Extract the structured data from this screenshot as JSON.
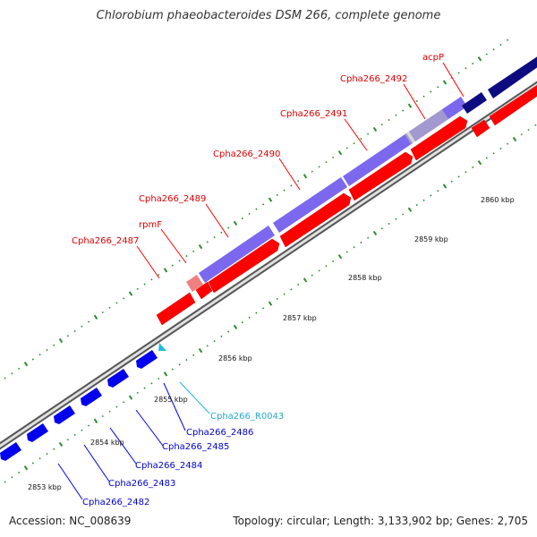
{
  "title": "Chlorobium phaeobacteroides DSM 266, complete genome",
  "footer": {
    "accession": "Accession: NC_008639",
    "summary": "Topology: circular; Length: 3,133,902 bp; Genes: 2,705"
  },
  "colors": {
    "forward_gene": "#ff0000",
    "reverse_gene": "#0000ee",
    "forward_cds_track": "#7b68ee",
    "pale_gene": "#f08080",
    "dark_cds_track": "#0c0c80",
    "rna_gene": "#22bbdd",
    "backbone": "#888888",
    "tick": "#2e8b2e"
  },
  "scale_labels": [
    "2853 kbp",
    "2854 kbp",
    "2855 kbp",
    "2856 kbp",
    "2857 kbp",
    "2858 kbp",
    "2859 kbp",
    "2860 kbp"
  ],
  "forward_genes": [
    "Cpha266_2487",
    "rpmF",
    "Cpha266_2489",
    "Cpha266_2490",
    "Cpha266_2491",
    "Cpha266_2492",
    "acpP"
  ],
  "reverse_genes": [
    "Cpha266_R0043",
    "Cpha266_2486",
    "Cpha266_2485",
    "Cpha266_2484",
    "Cpha266_2483",
    "Cpha266_2482"
  ]
}
